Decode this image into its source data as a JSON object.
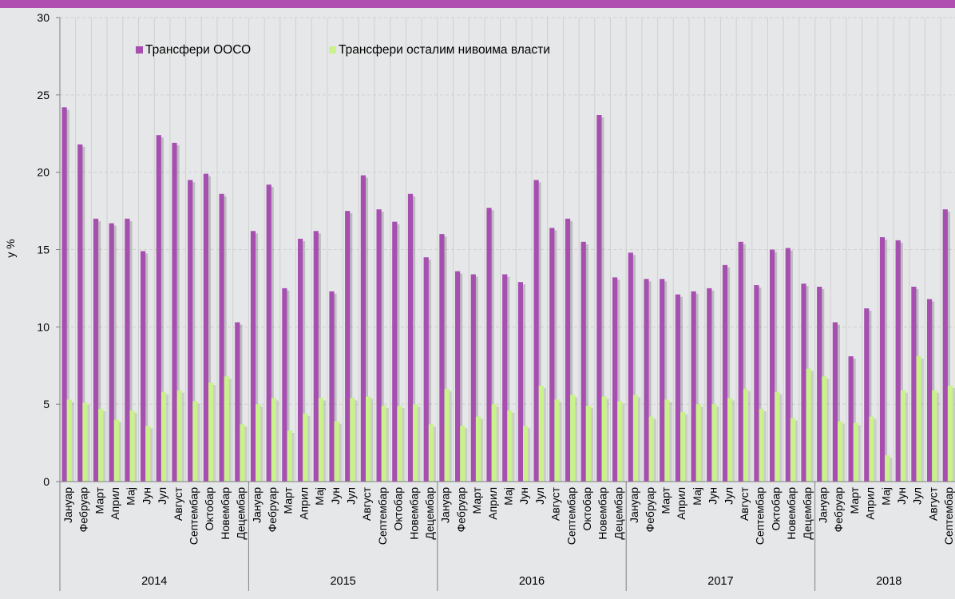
{
  "colors": {
    "background": "#e6e7e8",
    "top_bar": "#b04fb1",
    "series_oocso": "#a64fb0",
    "series_other": "#c9f28a",
    "grid": "#d0d0d0",
    "axis": "#7f7f7f"
  },
  "chart_data": {
    "type": "bar",
    "title": "",
    "xlabel": "",
    "ylabel": "у %",
    "ylim": [
      0,
      30
    ],
    "yticks": [
      0,
      5,
      10,
      15,
      20,
      25,
      30
    ],
    "grid": true,
    "legend_position": "top-left",
    "categories": [
      "Јануар",
      "Фебруар",
      "Март",
      "Април",
      "Мај",
      "Јун",
      "Јул",
      "Август",
      "Септембар",
      "Октобар",
      "Новембар",
      "Децембар",
      "Јануар",
      "Фебруар",
      "Март",
      "Април",
      "Мај",
      "Јун",
      "Јул",
      "Август",
      "Септембар",
      "Октобар",
      "Новембар",
      "Децембар",
      "Јануар",
      "Фебруар",
      "Март",
      "Април",
      "Мај",
      "Јун",
      "Јул",
      "Август",
      "Септембар",
      "Октобар",
      "Новембар",
      "Децембар",
      "Јануар",
      "Фебруар",
      "Март",
      "Април",
      "Мај",
      "Јун",
      "Јул",
      "Август",
      "Септембар",
      "Октобар",
      "Новембар",
      "Децембар",
      "Јануар",
      "Фебруар",
      "Март",
      "Април",
      "Мај",
      "Јун",
      "Јул",
      "Август",
      "Септембар"
    ],
    "groups": [
      {
        "label": "2014",
        "count": 12
      },
      {
        "label": "2015",
        "count": 12
      },
      {
        "label": "2016",
        "count": 12
      },
      {
        "label": "2017",
        "count": 12
      },
      {
        "label": "2018",
        "count": 9
      }
    ],
    "series": [
      {
        "name": "Трансфери ООСО",
        "values": [
          24.2,
          21.8,
          17.0,
          16.7,
          17.0,
          14.9,
          22.4,
          21.9,
          19.5,
          19.9,
          18.6,
          10.3,
          16.2,
          19.2,
          12.5,
          15.7,
          16.2,
          12.3,
          17.5,
          19.8,
          17.6,
          16.8,
          18.6,
          14.5,
          16.0,
          13.6,
          13.4,
          17.7,
          13.4,
          12.9,
          19.5,
          16.4,
          17.0,
          15.5,
          23.7,
          13.2,
          14.8,
          13.1,
          13.1,
          12.1,
          12.3,
          12.5,
          14.0,
          15.5,
          12.7,
          15.0,
          15.1,
          12.8,
          12.6,
          10.3,
          8.1,
          11.2,
          15.8,
          15.6,
          12.6,
          11.8,
          17.6
        ]
      },
      {
        "name": "Трансфери осталим нивоима власти",
        "values": [
          5.3,
          5.1,
          4.7,
          4.0,
          4.6,
          3.6,
          5.8,
          5.9,
          5.2,
          6.4,
          6.8,
          3.7,
          5.0,
          5.4,
          3.3,
          4.4,
          5.4,
          3.9,
          5.4,
          5.5,
          4.9,
          4.9,
          5.0,
          3.7,
          6.0,
          3.6,
          4.2,
          5.0,
          4.6,
          3.6,
          6.2,
          5.3,
          5.6,
          4.9,
          5.5,
          5.2,
          5.6,
          4.2,
          5.3,
          4.5,
          5.0,
          5.0,
          5.4,
          6.0,
          4.7,
          5.8,
          4.1,
          7.3,
          6.8,
          3.9,
          3.8,
          4.2,
          1.7,
          5.9,
          8.1,
          5.9,
          6.2
        ]
      }
    ]
  }
}
